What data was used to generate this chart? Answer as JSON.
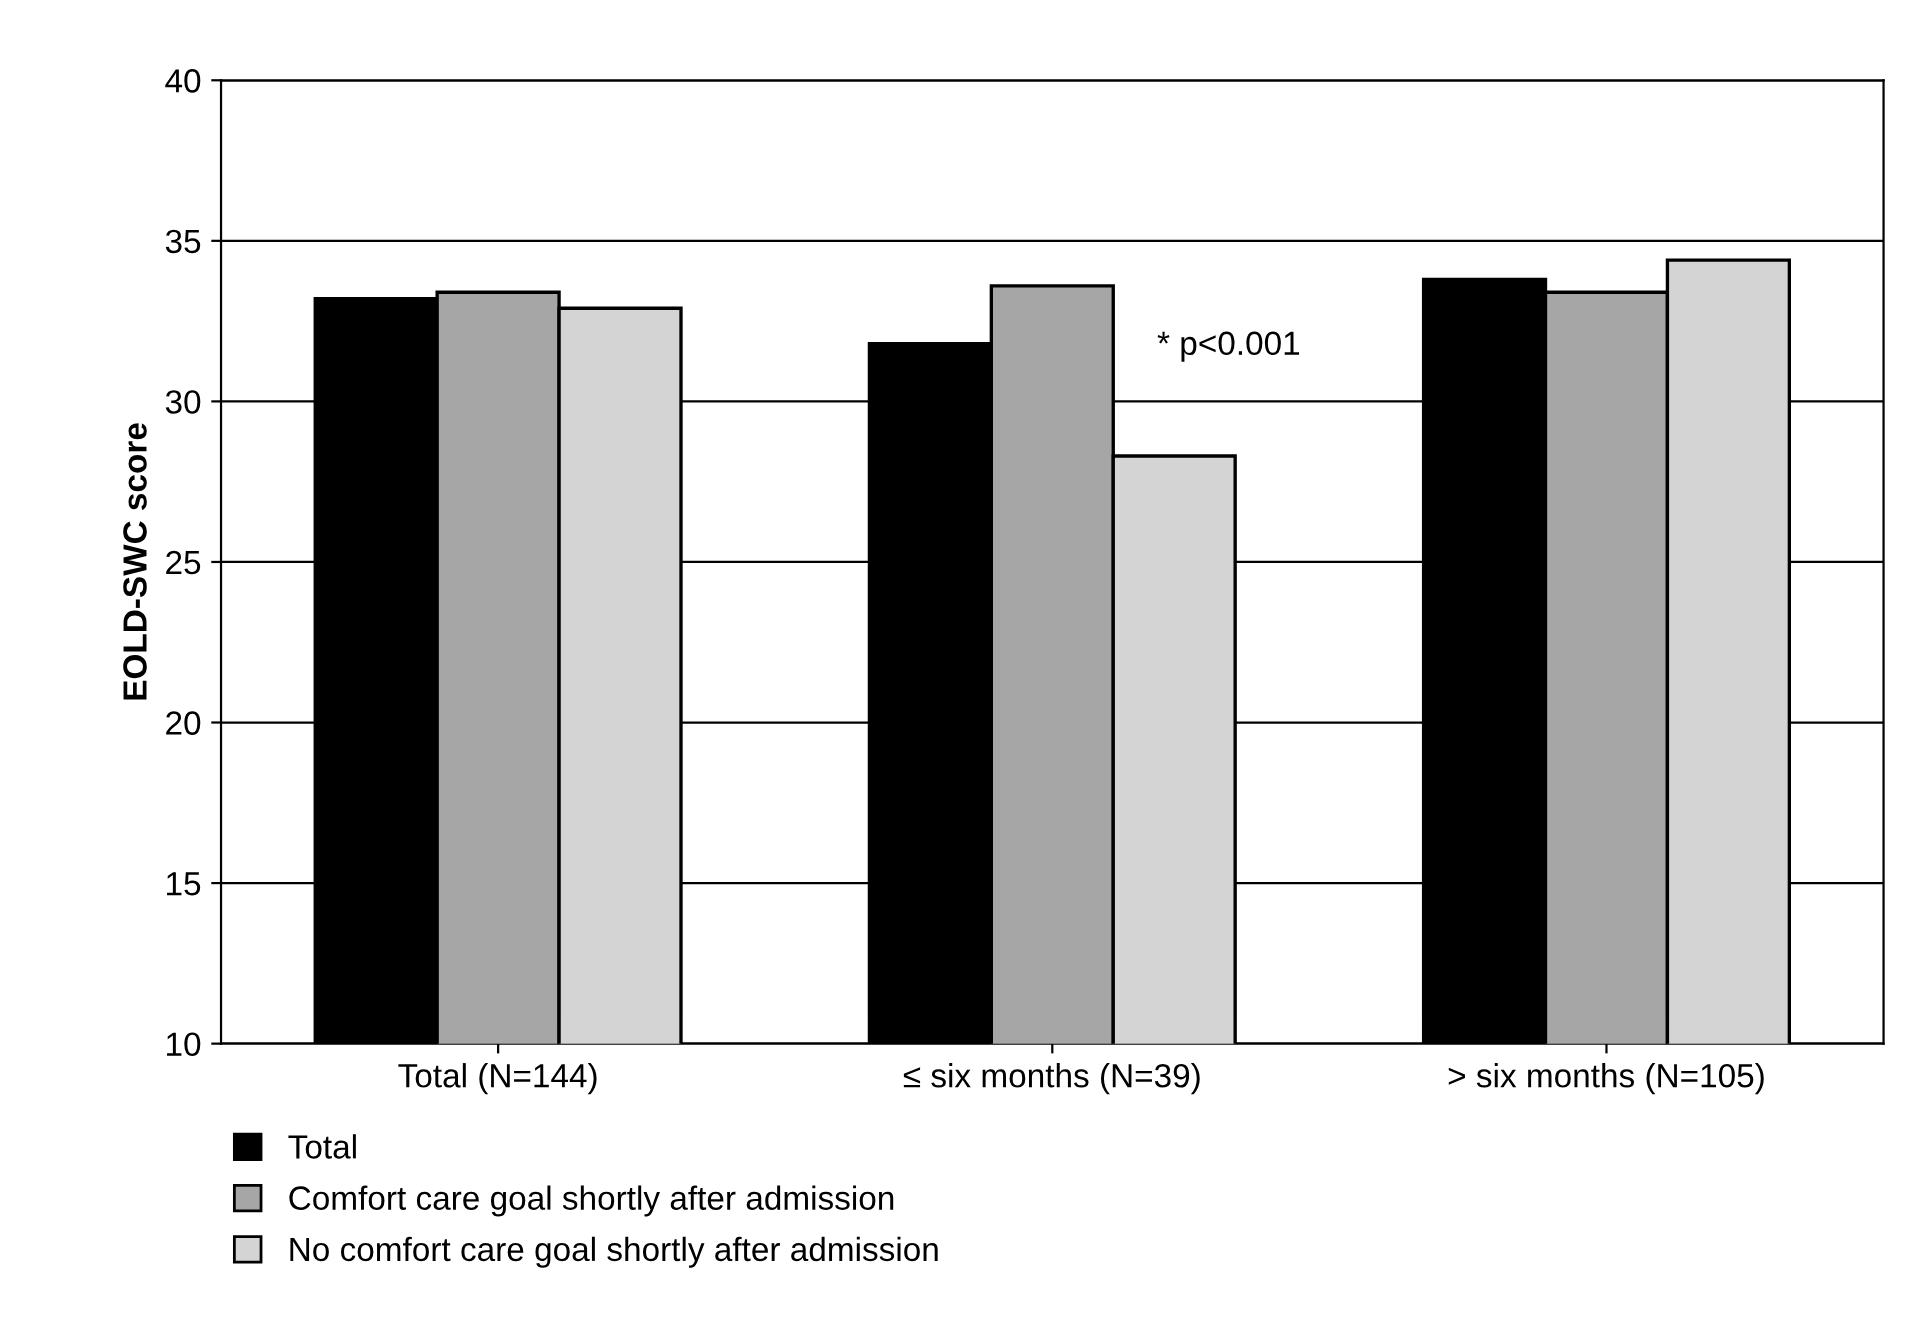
{
  "chart_data": {
    "type": "bar",
    "ylabel": "EOLD-SWC score",
    "categories": [
      "Total (N=144)",
      "≤ six months (N=39)",
      "> six months (N=105)"
    ],
    "series": [
      {
        "name": "Total",
        "color": "#000000",
        "values": [
          33.2,
          31.8,
          33.8
        ]
      },
      {
        "name": "Comfort care goal shortly after admission",
        "color": "#a6a6a6",
        "values": [
          33.4,
          33.6,
          33.4
        ]
      },
      {
        "name": "No comfort care goal shortly after admission",
        "color": "#d4d4d4",
        "values": [
          32.9,
          28.3,
          34.4
        ]
      }
    ],
    "ylim": [
      10,
      40
    ],
    "yticks": [
      10,
      15,
      20,
      25,
      30,
      35,
      40
    ],
    "grid": "y",
    "legend": "bottom left",
    "annotations": [
      "* p<0.001"
    ]
  }
}
